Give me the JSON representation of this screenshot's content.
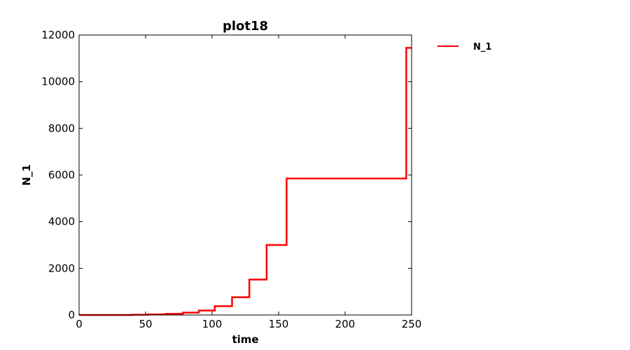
{
  "chart_data": {
    "type": "line",
    "title": "plot18",
    "xlabel": "time",
    "ylabel": "N_1",
    "xlim": [
      0,
      250
    ],
    "ylim": [
      0,
      12000
    ],
    "xticks": [
      "0",
      "50",
      "100",
      "150",
      "200",
      "250"
    ],
    "yticks": [
      "0",
      "2000",
      "4000",
      "6000",
      "8000",
      "10000",
      "12000"
    ],
    "grid": false,
    "legend": "outside-top-right",
    "series": [
      {
        "name": "N_1",
        "color": "#ff0000",
        "step": "post",
        "x": [
          0,
          40,
          52,
          65,
          78,
          90,
          102,
          115,
          128,
          141,
          156,
          246,
          250
        ],
        "y": [
          0,
          10,
          25,
          50,
          100,
          190,
          380,
          760,
          1520,
          3000,
          5850,
          11450,
          11450
        ]
      }
    ]
  }
}
